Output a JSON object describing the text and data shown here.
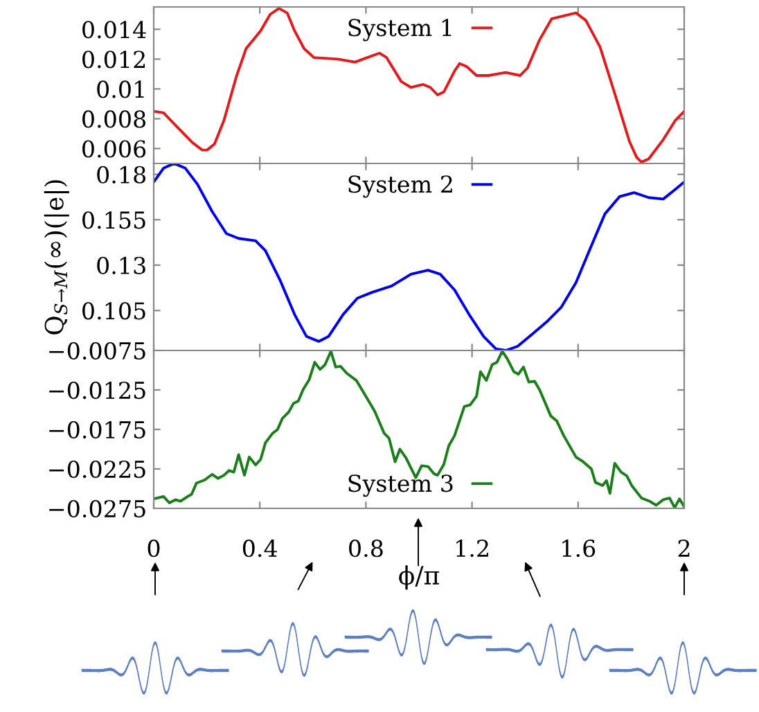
{
  "chart_data": [
    {
      "type": "line",
      "xlim": [
        0,
        2
      ],
      "xticks": [
        0,
        0.4,
        0.8,
        1.2,
        1.6,
        2
      ],
      "ylim": [
        0.005,
        0.0155
      ],
      "yticks": [
        0.006,
        0.008,
        0.01,
        0.012,
        0.014
      ],
      "tick_labels": "y",
      "legend": "top",
      "grid": false,
      "marker": "none",
      "line_style": "solid",
      "series": [
        {
          "name": "System 1",
          "color": "#e41a1c",
          "x": [
            0,
            0.037,
            0.091,
            0.146,
            0.183,
            0.201,
            0.229,
            0.265,
            0.311,
            0.348,
            0.403,
            0.439,
            0.472,
            0.503,
            0.531,
            0.567,
            0.604,
            0.695,
            0.759,
            0.805,
            0.851,
            0.878,
            0.933,
            0.97,
            1.016,
            1.043,
            1.07,
            1.094,
            1.134,
            1.153,
            1.18,
            1.217,
            1.263,
            1.327,
            1.381,
            1.409,
            1.455,
            1.5,
            1.546,
            1.592,
            1.629,
            1.683,
            1.738,
            1.793,
            1.821,
            1.839,
            1.866,
            1.921,
            1.967,
            2
          ],
          "values": [
            0.0085,
            0.0084,
            0.0074,
            0.0064,
            0.0059,
            0.0059,
            0.0063,
            0.0079,
            0.0108,
            0.0127,
            0.0139,
            0.015,
            0.0154,
            0.0151,
            0.0139,
            0.0127,
            0.0121,
            0.012,
            0.0118,
            0.0121,
            0.0124,
            0.0121,
            0.0105,
            0.0101,
            0.0103,
            0.0101,
            0.0096,
            0.0098,
            0.0112,
            0.0117,
            0.0115,
            0.0109,
            0.0109,
            0.0111,
            0.0109,
            0.0114,
            0.0133,
            0.0147,
            0.0149,
            0.0151,
            0.0146,
            0.0128,
            0.0097,
            0.0065,
            0.0054,
            0.0051,
            0.0053,
            0.0066,
            0.0079,
            0.0085
          ]
        }
      ]
    },
    {
      "type": "line",
      "xlim": [
        0,
        2
      ],
      "xticks": [
        0,
        0.4,
        0.8,
        1.2,
        1.6,
        2
      ],
      "ylim": [
        0.083,
        0.186
      ],
      "yticks": [
        0.105,
        0.13,
        0.155,
        0.18
      ],
      "tick_labels": "y",
      "legend": "top",
      "grid": false,
      "marker": "none",
      "line_style": "solid",
      "ylabel": "Q$_{S→M}$(∞)(|e|)",
      "series": [
        {
          "name": "System 2",
          "color": "#0000ee",
          "x": [
            0,
            0.037,
            0.077,
            0.119,
            0.165,
            0.22,
            0.274,
            0.32,
            0.384,
            0.421,
            0.476,
            0.531,
            0.576,
            0.622,
            0.659,
            0.714,
            0.768,
            0.823,
            0.897,
            0.97,
            1.034,
            1.08,
            1.134,
            1.189,
            1.244,
            1.29,
            1.327,
            1.372,
            1.427,
            1.482,
            1.537,
            1.592,
            1.646,
            1.701,
            1.756,
            1.811,
            1.866,
            1.921,
            1.967,
            2
          ],
          "values": [
            0.1758,
            0.1834,
            0.186,
            0.1834,
            0.1745,
            0.1596,
            0.1474,
            0.1447,
            0.1434,
            0.138,
            0.1218,
            0.1028,
            0.0907,
            0.088,
            0.0907,
            0.1028,
            0.1118,
            0.115,
            0.1185,
            0.125,
            0.1272,
            0.125,
            0.1164,
            0.1028,
            0.0907,
            0.0839,
            0.083,
            0.0853,
            0.092,
            0.0988,
            0.1069,
            0.1204,
            0.1393,
            0.1582,
            0.1677,
            0.1699,
            0.1672,
            0.1664,
            0.1718,
            0.1758
          ]
        }
      ]
    },
    {
      "type": "line",
      "xlim": [
        0,
        2
      ],
      "xticks": [
        0,
        0.4,
        0.8,
        1.2,
        1.6,
        2
      ],
      "ylim": [
        -0.0275,
        -0.0075
      ],
      "yticks": [
        -0.0275,
        -0.0225,
        -0.0175,
        -0.0125,
        -0.0075
      ],
      "legend": "bottom",
      "grid": false,
      "marker": "none",
      "line_style": "solid",
      "xlabel": "ϕ/π",
      "series": [
        {
          "name": "System 3",
          "color": "#1a7f1a",
          "x": [
            0,
            0.037,
            0.059,
            0.082,
            0.101,
            0.128,
            0.143,
            0.161,
            0.192,
            0.22,
            0.242,
            0.265,
            0.284,
            0.302,
            0.32,
            0.342,
            0.36,
            0.384,
            0.403,
            0.421,
            0.448,
            0.467,
            0.485,
            0.509,
            0.527,
            0.545,
            0.564,
            0.586,
            0.607,
            0.627,
            0.646,
            0.668,
            0.686,
            0.704,
            0.728,
            0.764,
            0.796,
            0.833,
            0.869,
            0.887,
            0.91,
            0.928,
            0.951,
            0.988,
            1.01,
            1.034,
            1.056,
            1.07,
            1.094,
            1.112,
            1.134,
            1.171,
            1.193,
            1.217,
            1.232,
            1.254,
            1.276,
            1.294,
            1.314,
            1.332,
            1.358,
            1.375,
            1.394,
            1.414,
            1.436,
            1.455,
            1.497,
            1.519,
            1.546,
            1.592,
            1.619,
            1.65,
            1.665,
            1.692,
            1.707,
            1.72,
            1.738,
            1.762,
            1.784,
            1.802,
            1.839,
            1.87,
            1.894,
            1.921,
            1.945,
            1.964,
            1.982,
            2
          ],
          "values": [
            -0.0263,
            -0.026,
            -0.0268,
            -0.0264,
            -0.0266,
            -0.026,
            -0.0257,
            -0.0243,
            -0.0239,
            -0.0232,
            -0.0237,
            -0.0233,
            -0.0227,
            -0.0229,
            -0.0207,
            -0.0233,
            -0.021,
            -0.022,
            -0.0213,
            -0.0192,
            -0.018,
            -0.0175,
            -0.0161,
            -0.0153,
            -0.0142,
            -0.0139,
            -0.0124,
            -0.0112,
            -0.009,
            -0.0099,
            -0.0093,
            -0.0076,
            -0.0096,
            -0.0095,
            -0.0104,
            -0.0113,
            -0.0131,
            -0.0152,
            -0.018,
            -0.0186,
            -0.0216,
            -0.02,
            -0.0211,
            -0.0236,
            -0.0221,
            -0.0222,
            -0.0231,
            -0.0233,
            -0.0219,
            -0.0196,
            -0.0183,
            -0.0146,
            -0.0144,
            -0.0133,
            -0.0102,
            -0.0113,
            -0.0093,
            -0.009,
            -0.0076,
            -0.0085,
            -0.0102,
            -0.0105,
            -0.0096,
            -0.0115,
            -0.0114,
            -0.0125,
            -0.0158,
            -0.0164,
            -0.0183,
            -0.021,
            -0.0216,
            -0.0225,
            -0.0242,
            -0.0246,
            -0.024,
            -0.0256,
            -0.0218,
            -0.0229,
            -0.0234,
            -0.0246,
            -0.0262,
            -0.0266,
            -0.0271,
            -0.0264,
            -0.0262,
            -0.0274,
            -0.0263,
            -0.0273
          ]
        }
      ]
    }
  ]
}
